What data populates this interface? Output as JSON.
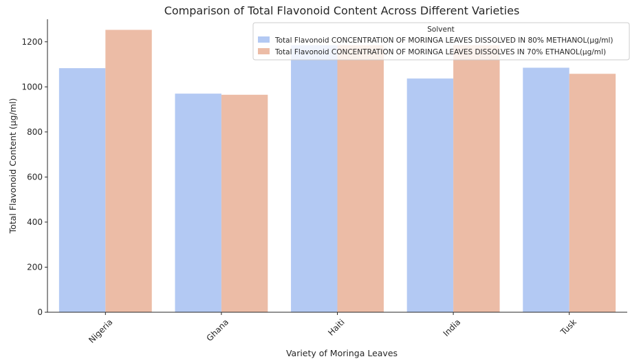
{
  "chart_data": {
    "type": "bar",
    "title": "Comparison of Total Flavonoid Content Across Different Varieties",
    "xlabel": "Variety of Moringa Leaves",
    "ylabel": "Total Flavonoid Content (µg/ml)",
    "categories": [
      "Nigeria",
      "Ghana",
      "Haiti",
      "India",
      "Tusk"
    ],
    "ylim": [
      0,
      1300
    ],
    "yticks": [
      0,
      200,
      400,
      600,
      800,
      1000,
      1200
    ],
    "grid": false,
    "legend": {
      "title": "Solvent",
      "placement": "top-right"
    },
    "series": [
      {
        "name": "Total Flavonoid CONCENTRATION OF MORINGA LEAVES DISSOLVED IN 80% METHANOL(µg/ml)",
        "color": "#b3c9f3",
        "values": [
          1083,
          970,
          1185,
          1037,
          1085
        ]
      },
      {
        "name": "Total Flavonoid CONCENTRATION OF MORINGA LEAVES DISSOLVES IN 70% ETHANOL(µg/ml)",
        "color": "#ecbca6",
        "values": [
          1253,
          965,
          1185,
          1185,
          1058
        ]
      }
    ]
  }
}
